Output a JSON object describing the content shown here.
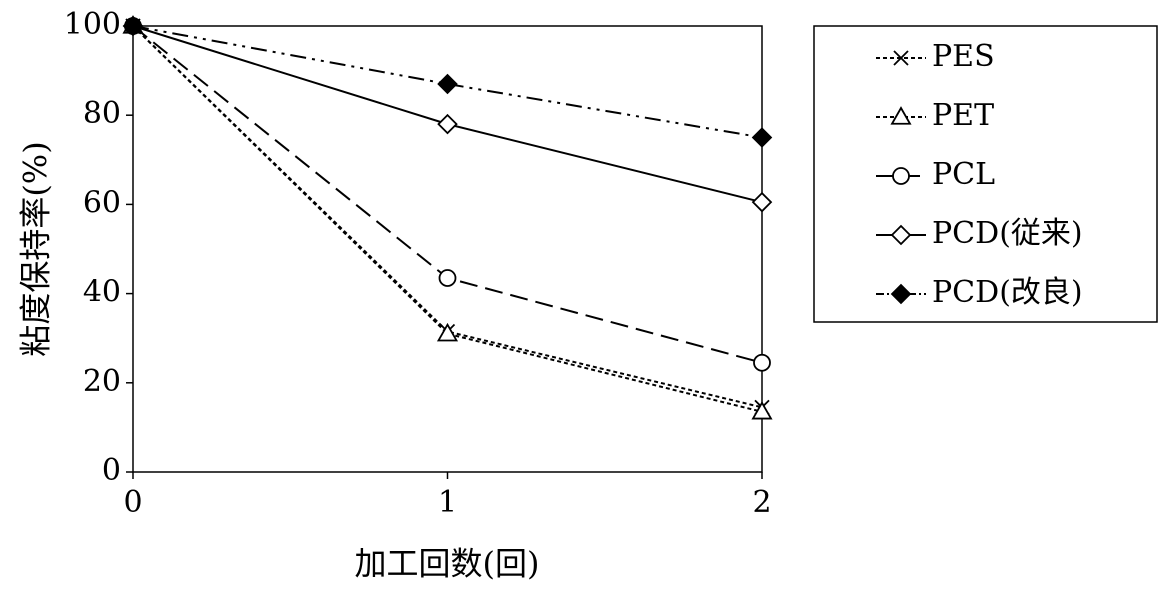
{
  "chart_data": {
    "type": "line",
    "x": [
      0,
      1,
      2
    ],
    "xlabel": "加工回数(回)",
    "ylabel": "粘度保持率(%)",
    "xlim": [
      0,
      2
    ],
    "ylim": [
      0,
      100
    ],
    "xticks": [
      "0",
      "1",
      "2"
    ],
    "yticks": [
      "0",
      "20",
      "40",
      "60",
      "80",
      "100"
    ],
    "grid": false,
    "legend_position": "right",
    "series": [
      {
        "name": "PES",
        "values": [
          100,
          31.5,
          14.5
        ],
        "marker": "x",
        "dash": "short-dash",
        "marker_fill": "none",
        "color": "#000000"
      },
      {
        "name": "PET",
        "values": [
          100,
          31,
          13.5
        ],
        "marker": "triangle",
        "dash": "short-dash",
        "marker_fill": "open",
        "color": "#000000"
      },
      {
        "name": "PCL",
        "values": [
          100,
          43.5,
          24.5
        ],
        "marker": "circle",
        "dash": "long-dash",
        "marker_fill": "open",
        "color": "#000000"
      },
      {
        "name": "PCD(従来)",
        "values": [
          100,
          78,
          60.5
        ],
        "marker": "diamond",
        "dash": "solid",
        "marker_fill": "open",
        "color": "#000000"
      },
      {
        "name": "PCD(改良)",
        "values": [
          100,
          87,
          75
        ],
        "marker": "diamond",
        "dash": "dash-dot-dot",
        "marker_fill": "filled",
        "color": "#000000"
      }
    ]
  }
}
